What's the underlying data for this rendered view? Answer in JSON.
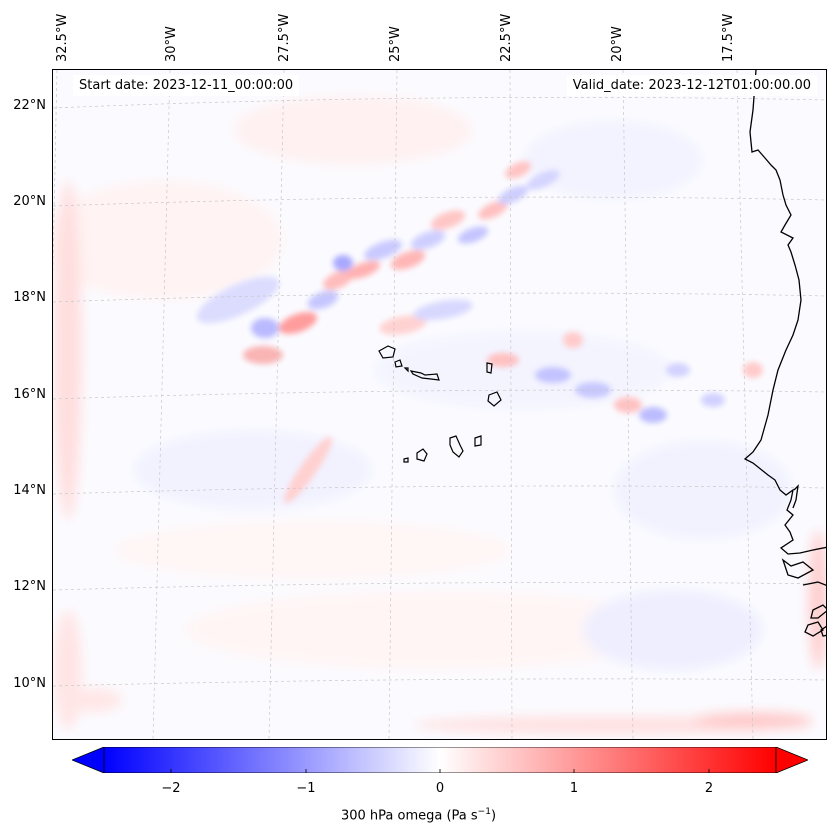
{
  "map": {
    "start_date_text": "Start date: 2023-12-11_00:00:00",
    "valid_date_text": "Valid_date: 2023-12-12T01:00:00.00",
    "lon_labels": [
      "32.5°W",
      "30°W",
      "27.5°W",
      "25°W",
      "22.5°W",
      "20°W",
      "17.5°W"
    ],
    "lat_labels": [
      "22°N",
      "20°N",
      "18°N",
      "16°N",
      "14°N",
      "12°N",
      "10°N"
    ],
    "gridline_style": "dashed-light-gray",
    "features": [
      "Cape Verde islands",
      "West African coastline (Mauritania, Senegal, Gambia, Guinea-Bissau)"
    ]
  },
  "colorbar": {
    "label": "300 hPa omega",
    "units_base": "(Pa s",
    "units_sup": "−1",
    "units_close": ")",
    "ticks": [
      "−2",
      "−1",
      "0",
      "1",
      "2"
    ],
    "range": [
      -2.5,
      2.5
    ],
    "colors": {
      "min": "#0000ff",
      "mid": "#ffffff",
      "max": "#ff0000"
    },
    "extend": "both"
  }
}
